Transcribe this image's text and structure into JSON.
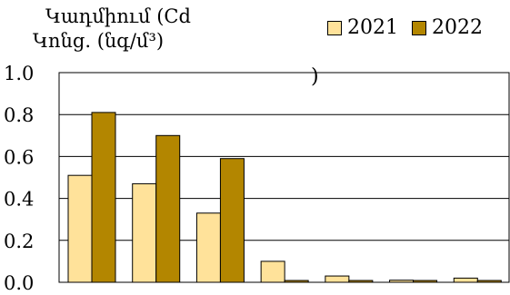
{
  "chart_data": {
    "type": "bar",
    "title_lines": [
      "Կադմիում (Cd",
      "Կոնց. (նգ/մ³)",
      ")"
    ],
    "categories": [
      "",
      "",
      "",
      "",
      "",
      "",
      ""
    ],
    "series": [
      {
        "name": "2021",
        "values": [
          0.51,
          0.47,
          0.33,
          0.1,
          0.03,
          0.01,
          0.02
        ],
        "color": "#FFE29A"
      },
      {
        "name": "2022",
        "values": [
          0.81,
          0.7,
          0.59,
          0.0,
          0.0,
          0.0,
          0.0
        ],
        "color": "#B38600"
      }
    ],
    "ylim": [
      0,
      1.0
    ],
    "yticks": [
      "0.0",
      "0.2",
      "0.4",
      "0.6",
      "0.8",
      "1.0"
    ],
    "grid": true,
    "legend_position": "top-right"
  }
}
